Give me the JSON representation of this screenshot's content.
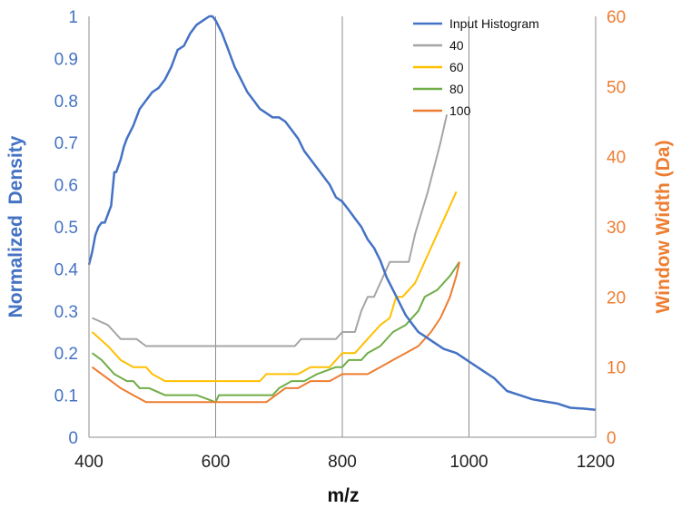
{
  "chart_data": {
    "type": "line",
    "xlabel": "m/z",
    "ylabel_left": "Normalized  Density",
    "ylabel_right": "Window Width (Da)",
    "xlim": [
      400,
      1200
    ],
    "ylim_left": [
      0,
      1
    ],
    "ylim_right": [
      0,
      60
    ],
    "x_ticks": [
      400,
      600,
      800,
      1000,
      1200
    ],
    "y_left_ticks": [
      0,
      0.1,
      0.2,
      0.3,
      0.4,
      0.5,
      0.6,
      0.7,
      0.8,
      0.9,
      1
    ],
    "y_right_ticks": [
      0,
      10,
      20,
      30,
      40,
      50,
      60
    ],
    "vertical_gridlines_at": [
      600,
      800,
      1000
    ],
    "legend_position": "top-right",
    "colors": {
      "Input Histogram": "#4472C4",
      "40": "#A5A5A5",
      "60": "#FFC000",
      "80": "#70AD47",
      "100": "#ED7D31"
    },
    "series": [
      {
        "name": "Input Histogram",
        "axis": "left",
        "x": [
          400,
          405,
          410,
          415,
          420,
          425,
          430,
          435,
          440,
          443,
          450,
          455,
          460,
          470,
          480,
          490,
          500,
          510,
          520,
          530,
          540,
          550,
          560,
          570,
          580,
          590,
          595,
          600,
          610,
          620,
          630,
          640,
          650,
          660,
          670,
          680,
          690,
          700,
          710,
          720,
          730,
          740,
          750,
          760,
          770,
          780,
          790,
          800,
          810,
          820,
          830,
          840,
          850,
          860,
          870,
          880,
          890,
          900,
          910,
          920,
          930,
          940,
          950,
          960,
          980,
          1000,
          1020,
          1040,
          1060,
          1080,
          1100,
          1120,
          1140,
          1160,
          1180,
          1200
        ],
        "y": [
          0.41,
          0.44,
          0.48,
          0.5,
          0.51,
          0.51,
          0.53,
          0.55,
          0.63,
          0.63,
          0.66,
          0.69,
          0.71,
          0.74,
          0.78,
          0.8,
          0.82,
          0.83,
          0.85,
          0.88,
          0.92,
          0.93,
          0.96,
          0.98,
          0.99,
          1.0,
          1.0,
          0.99,
          0.96,
          0.92,
          0.88,
          0.85,
          0.82,
          0.8,
          0.78,
          0.77,
          0.76,
          0.76,
          0.75,
          0.73,
          0.71,
          0.68,
          0.66,
          0.64,
          0.62,
          0.6,
          0.57,
          0.56,
          0.54,
          0.52,
          0.5,
          0.47,
          0.45,
          0.42,
          0.38,
          0.35,
          0.32,
          0.29,
          0.27,
          0.25,
          0.24,
          0.23,
          0.22,
          0.21,
          0.2,
          0.18,
          0.16,
          0.14,
          0.11,
          0.1,
          0.09,
          0.085,
          0.08,
          0.07,
          0.068,
          0.065
        ]
      },
      {
        "name": "40",
        "axis": "right",
        "x": [
          405,
          430,
          450,
          475,
          490,
          530,
          600,
          650,
          700,
          725,
          735,
          770,
          790,
          800,
          820,
          830,
          840,
          850,
          860,
          875,
          890,
          905,
          915,
          935,
          955,
          965
        ],
        "y": [
          17,
          16,
          14,
          14,
          13,
          13,
          13,
          13,
          13,
          13,
          14,
          14,
          14,
          15,
          15,
          18,
          20,
          20,
          22,
          25,
          25,
          25,
          29,
          35,
          42,
          46
        ]
      },
      {
        "name": "60",
        "axis": "right",
        "x": [
          405,
          430,
          450,
          470,
          490,
          500,
          520,
          540,
          580,
          600,
          620,
          650,
          670,
          680,
          700,
          730,
          750,
          780,
          800,
          810,
          820,
          830,
          840,
          850,
          860,
          875,
          885,
          895,
          915,
          935,
          960,
          980
        ],
        "y": [
          15,
          13,
          11,
          10,
          10,
          9,
          8,
          8,
          8,
          8,
          8,
          8,
          8,
          9,
          9,
          9,
          10,
          10,
          12,
          12,
          12,
          13,
          14,
          15,
          16,
          17,
          20,
          20,
          22,
          26,
          31,
          35
        ]
      },
      {
        "name": "80",
        "axis": "right",
        "x": [
          405,
          420,
          440,
          460,
          470,
          480,
          495,
          520,
          540,
          570,
          600,
          605,
          630,
          670,
          690,
          700,
          720,
          740,
          760,
          790,
          800,
          810,
          830,
          840,
          860,
          880,
          900,
          920,
          930,
          950,
          970,
          985
        ],
        "y": [
          12,
          11,
          9,
          8,
          8,
          7,
          7,
          6,
          6,
          6,
          5,
          6,
          6,
          6,
          6,
          7,
          8,
          8,
          9,
          10,
          10,
          11,
          11,
          12,
          13,
          15,
          16,
          18,
          20,
          21,
          23,
          25
        ]
      },
      {
        "name": "100",
        "axis": "right",
        "x": [
          405,
          420,
          435,
          450,
          470,
          490,
          500,
          520,
          540,
          560,
          580,
          600,
          620,
          640,
          660,
          680,
          695,
          710,
          730,
          750,
          780,
          800,
          820,
          840,
          860,
          880,
          900,
          920,
          940,
          955,
          970,
          980,
          985
        ],
        "y": [
          10,
          9,
          8,
          7,
          6,
          5,
          5,
          5,
          5,
          5,
          5,
          5,
          5,
          5,
          5,
          5,
          6,
          7,
          7,
          8,
          8,
          9,
          9,
          9,
          10,
          11,
          12,
          13,
          15,
          17,
          20,
          23,
          25
        ]
      }
    ]
  }
}
